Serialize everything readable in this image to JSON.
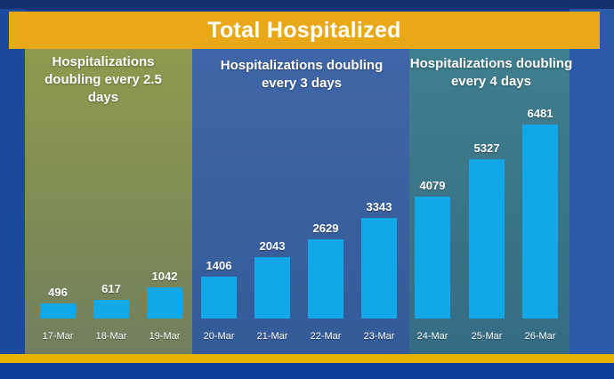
{
  "chart_data": {
    "type": "bar",
    "title": "Total Hospitalized",
    "categories": [
      "17-Mar",
      "18-Mar",
      "19-Mar",
      "20-Mar",
      "21-Mar",
      "22-Mar",
      "23-Mar",
      "24-Mar",
      "25-Mar",
      "26-Mar"
    ],
    "values": [
      496,
      617,
      1042,
      1406,
      2043,
      2629,
      3343,
      4079,
      5327,
      6481
    ],
    "xlabel": "",
    "ylabel": "",
    "ylim": [
      0,
      6800
    ],
    "grid": false,
    "bar_color": "#12a8e8",
    "title_bar_color": "#e8a818",
    "annotations": [
      {
        "text": "Hospitalizations doubling every 2.5 days",
        "categories": [
          "17-Mar",
          "18-Mar",
          "19-Mar"
        ],
        "color": "#8f9a4e"
      },
      {
        "text": "Hospitalizations doubling every 3 days",
        "categories": [
          "20-Mar",
          "21-Mar",
          "22-Mar",
          "23-Mar"
        ],
        "color": "#3f66a8"
      },
      {
        "text": "Hospitalizations doubling every 4 days",
        "categories": [
          "24-Mar",
          "25-Mar",
          "26-Mar"
        ],
        "color": "#3f7f8f"
      }
    ]
  }
}
